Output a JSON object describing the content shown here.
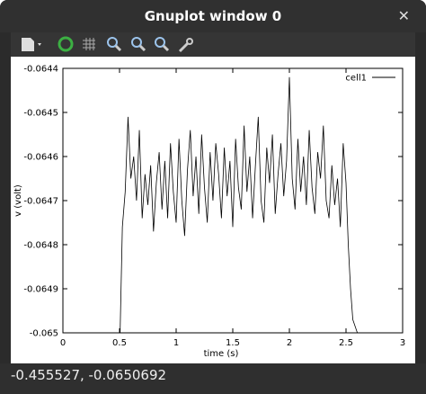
{
  "window": {
    "title": "Gnuplot window 0"
  },
  "chart_data": {
    "type": "line",
    "x_label": "time (s)",
    "y_label": "v (volt)",
    "x": [
      0,
      0.495,
      0.505,
      0.525,
      0.55,
      0.575,
      0.6,
      0.625,
      0.65,
      0.675,
      0.7,
      0.725,
      0.75,
      0.775,
      0.8,
      0.825,
      0.85,
      0.875,
      0.9,
      0.925,
      0.95,
      0.975,
      1.0,
      1.025,
      1.05,
      1.075,
      1.1,
      1.125,
      1.15,
      1.175,
      1.2,
      1.225,
      1.25,
      1.275,
      1.3,
      1.325,
      1.35,
      1.375,
      1.4,
      1.425,
      1.45,
      1.475,
      1.5,
      1.525,
      1.55,
      1.575,
      1.6,
      1.625,
      1.65,
      1.675,
      1.7,
      1.725,
      1.75,
      1.775,
      1.8,
      1.825,
      1.85,
      1.875,
      1.9,
      1.925,
      1.95,
      1.975,
      2.0,
      2.025,
      2.05,
      2.075,
      2.1,
      2.125,
      2.15,
      2.175,
      2.2,
      2.225,
      2.25,
      2.275,
      2.3,
      2.325,
      2.35,
      2.375,
      2.4,
      2.425,
      2.45,
      2.475,
      2.5,
      2.52,
      2.54,
      2.56,
      2.6,
      3
    ],
    "series": [
      {
        "name": "cell1",
        "color": "#000000",
        "values": [
          -0.065,
          -0.065,
          -0.065,
          -0.06476,
          -0.06468,
          -0.06451,
          -0.06465,
          -0.0646,
          -0.0647,
          -0.06454,
          -0.06474,
          -0.06464,
          -0.06471,
          -0.06462,
          -0.06477,
          -0.06466,
          -0.06459,
          -0.06472,
          -0.06461,
          -0.06474,
          -0.06457,
          -0.06468,
          -0.06475,
          -0.06456,
          -0.0647,
          -0.06478,
          -0.06463,
          -0.06454,
          -0.06469,
          -0.0646,
          -0.06473,
          -0.06455,
          -0.06467,
          -0.06475,
          -0.06459,
          -0.0647,
          -0.06457,
          -0.06464,
          -0.06474,
          -0.06458,
          -0.06469,
          -0.06461,
          -0.06476,
          -0.06456,
          -0.06467,
          -0.06472,
          -0.06453,
          -0.06468,
          -0.0646,
          -0.06474,
          -0.06462,
          -0.06451,
          -0.0647,
          -0.06475,
          -0.06458,
          -0.06466,
          -0.06455,
          -0.06473,
          -0.06464,
          -0.06457,
          -0.06469,
          -0.06461,
          -0.06442,
          -0.06465,
          -0.06472,
          -0.06456,
          -0.06468,
          -0.0646,
          -0.06471,
          -0.06454,
          -0.06467,
          -0.06473,
          -0.06459,
          -0.06465,
          -0.06453,
          -0.0647,
          -0.06474,
          -0.06462,
          -0.06471,
          -0.06465,
          -0.06476,
          -0.06457,
          -0.06466,
          -0.0648,
          -0.0649,
          -0.06497,
          -0.065,
          -0.065
        ]
      }
    ],
    "xlim": [
      0,
      3
    ],
    "xticks": [
      0,
      0.5,
      1,
      1.5,
      2,
      2.5,
      3
    ],
    "ylim": [
      -0.065,
      -0.0644
    ],
    "yticks": [
      -0.065,
      -0.0649,
      -0.0648,
      -0.0647,
      -0.0646,
      -0.0645,
      -0.0644
    ],
    "legend": "top-right"
  },
  "status_bar": {
    "text": "-0.455527, -0.0650692"
  }
}
